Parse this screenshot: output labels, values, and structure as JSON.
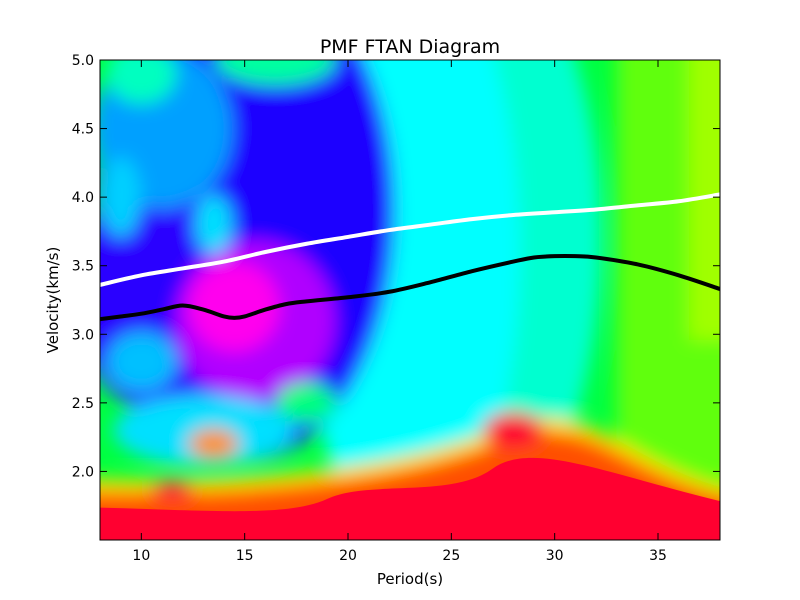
{
  "chart_data": {
    "type": "heatmap",
    "title": "PMF FTAN Diagram",
    "xlabel": "Period(s)",
    "ylabel": "Velocity(km/s)",
    "xlim": [
      8,
      38
    ],
    "ylim": [
      1.5,
      5.0
    ],
    "x_ticks": [
      "10",
      "15",
      "20",
      "25",
      "30",
      "35"
    ],
    "y_ticks": [
      "2.0",
      "2.5",
      "3.0",
      "3.5",
      "4.0",
      "4.5",
      "5.0"
    ],
    "grid": false,
    "legend": "none",
    "colormap": "hsv",
    "series": [
      {
        "color": "#ffffff",
        "x": [
          8,
          10,
          12,
          14,
          16,
          18,
          20,
          22,
          24,
          26,
          28,
          30,
          32,
          34,
          36,
          38
        ],
        "y": [
          3.36,
          3.43,
          3.48,
          3.53,
          3.6,
          3.66,
          3.71,
          3.76,
          3.8,
          3.84,
          3.87,
          3.89,
          3.91,
          3.94,
          3.97,
          4.02
        ]
      },
      {
        "color": "#000000",
        "x": [
          8,
          9,
          10,
          11,
          12,
          13,
          14,
          14.5,
          15,
          16,
          17,
          18,
          20,
          22,
          24,
          26,
          28,
          29,
          30,
          31,
          32,
          34,
          36,
          38
        ],
        "y": [
          3.11,
          3.13,
          3.15,
          3.18,
          3.21,
          3.18,
          3.13,
          3.12,
          3.13,
          3.18,
          3.22,
          3.24,
          3.27,
          3.31,
          3.38,
          3.46,
          3.53,
          3.56,
          3.57,
          3.57,
          3.56,
          3.51,
          3.43,
          3.33
        ]
      }
    ]
  }
}
